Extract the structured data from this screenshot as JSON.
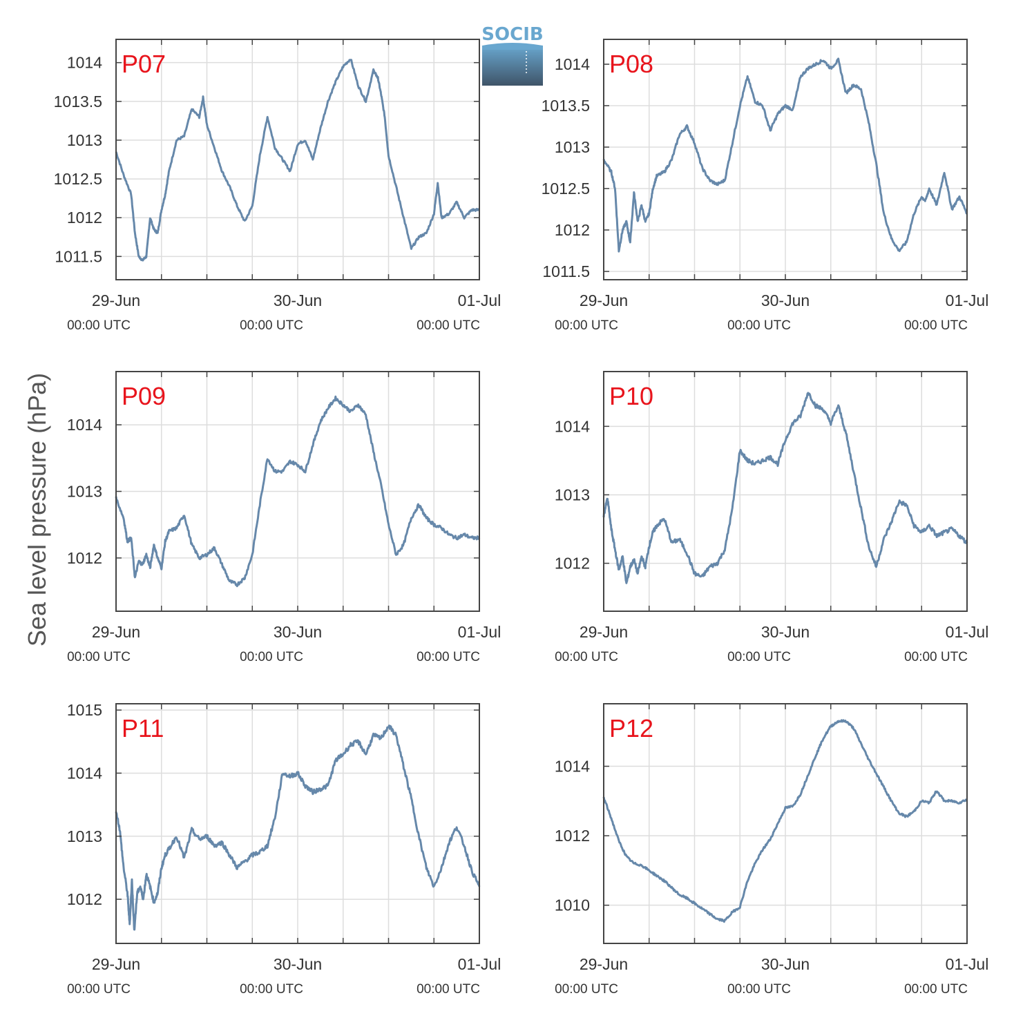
{
  "figure": {
    "ylabel": "Sea level pressure (hPa)",
    "logo_text": "SOCIB"
  },
  "colors": {
    "series": "#6688aa",
    "panel_label": "#e8141c",
    "grid": "#dddddd",
    "axis": "#444444",
    "logo_top": "#69a7cf",
    "logo_bottom": "#3f5468"
  },
  "chart_data": [
    {
      "type": "line",
      "panel": "P07",
      "xlim": [
        0,
        48
      ],
      "ylim": [
        1011.2,
        1014.3
      ],
      "yticks": [
        1011.5,
        1012,
        1012.5,
        1013,
        1013.5,
        1014
      ],
      "ytick_labels": [
        "1011.5",
        "1012",
        "1012.5",
        "1013",
        "1013.5",
        "1014"
      ],
      "xticks": [
        0,
        24,
        48
      ],
      "xtick_labels": [
        "29-Jun",
        "30-Jun",
        "01-Jul"
      ],
      "xtick_sublabels": [
        "00:00 UTC",
        "00:00 UTC",
        "00:00 UTC"
      ],
      "grid": true,
      "noise": 0.03,
      "x": [
        0,
        1,
        2,
        2.5,
        3,
        3.5,
        4,
        4.5,
        5,
        5.5,
        6,
        6.5,
        7,
        8,
        9,
        10,
        11,
        11.5,
        12,
        13,
        14,
        15,
        16,
        17,
        18,
        19,
        20,
        21,
        22,
        23,
        24,
        25,
        26,
        27,
        28,
        29,
        30,
        31,
        32,
        33,
        34,
        34.3,
        34.6,
        35,
        35.5,
        36,
        37,
        38,
        39,
        40,
        41,
        42,
        42.5,
        43,
        44,
        45,
        46,
        47,
        48
      ],
      "y": [
        1012.85,
        1012.55,
        1012.3,
        1011.8,
        1011.5,
        1011.45,
        1011.5,
        1012.0,
        1011.85,
        1011.8,
        1012.1,
        1012.3,
        1012.6,
        1013.0,
        1013.05,
        1013.4,
        1013.3,
        1013.55,
        1013.2,
        1012.9,
        1012.6,
        1012.4,
        1012.15,
        1011.95,
        1012.15,
        1012.8,
        1013.3,
        1012.9,
        1012.75,
        1012.6,
        1012.95,
        1013.0,
        1012.75,
        1013.15,
        1013.5,
        1013.75,
        1013.95,
        1014.05,
        1013.7,
        1013.5,
        1013.9,
        1013.85,
        1013.8,
        1013.6,
        1013.3,
        1012.8,
        1012.4,
        1012.0,
        1011.6,
        1011.75,
        1011.8,
        1012.05,
        1012.45,
        1012.0,
        1012.05,
        1012.2,
        1012.0,
        1012.1,
        1012.1
      ]
    },
    {
      "type": "line",
      "panel": "P08",
      "xlim": [
        0,
        48
      ],
      "ylim": [
        1011.4,
        1014.3
      ],
      "yticks": [
        1011.5,
        1012,
        1012.5,
        1013,
        1013.5,
        1014
      ],
      "ytick_labels": [
        "1011.5",
        "1012",
        "1012.5",
        "1013",
        "1013.5",
        "1014"
      ],
      "xticks": [
        0,
        24,
        48
      ],
      "xtick_labels": [
        "29-Jun",
        "30-Jun",
        "01-Jul"
      ],
      "xtick_sublabels": [
        "00:00 UTC",
        "00:00 UTC",
        "00:00 UTC"
      ],
      "grid": true,
      "noise": 0.035,
      "x": [
        0,
        1,
        1.5,
        2,
        2.5,
        3,
        3.5,
        4,
        4.5,
        5,
        5.5,
        6,
        6.5,
        7,
        8,
        9,
        10,
        11,
        12,
        13,
        14,
        15,
        16,
        17,
        18,
        19,
        20,
        21,
        22,
        23,
        24,
        25,
        26,
        27,
        28,
        29,
        30,
        31,
        32,
        33,
        34,
        35,
        36,
        37,
        38,
        39,
        40,
        41,
        42,
        42.5,
        43,
        44,
        45,
        46,
        47,
        48
      ],
      "y": [
        1012.85,
        1012.7,
        1012.5,
        1011.75,
        1012.0,
        1012.1,
        1011.85,
        1012.45,
        1012.1,
        1012.3,
        1012.1,
        1012.2,
        1012.5,
        1012.65,
        1012.7,
        1012.85,
        1013.15,
        1013.25,
        1013.05,
        1012.75,
        1012.6,
        1012.55,
        1012.6,
        1013.05,
        1013.5,
        1013.85,
        1013.55,
        1013.5,
        1013.2,
        1013.4,
        1013.5,
        1013.45,
        1013.85,
        1013.95,
        1014.0,
        1014.05,
        1013.95,
        1014.05,
        1013.65,
        1013.75,
        1013.7,
        1013.3,
        1012.8,
        1012.2,
        1011.9,
        1011.75,
        1011.85,
        1012.2,
        1012.4,
        1012.35,
        1012.5,
        1012.3,
        1012.7,
        1012.25,
        1012.4,
        1012.2
      ]
    },
    {
      "type": "line",
      "panel": "P09",
      "xlim": [
        0,
        48
      ],
      "ylim": [
        1011.2,
        1014.8
      ],
      "yticks": [
        1012,
        1013,
        1014
      ],
      "ytick_labels": [
        "1012",
        "1013",
        "1014"
      ],
      "xticks": [
        0,
        24,
        48
      ],
      "xtick_labels": [
        "29-Jun",
        "30-Jun",
        "01-Jul"
      ],
      "xtick_sublabels": [
        "00:00 UTC",
        "00:00 UTC",
        "00:00 UTC"
      ],
      "grid": true,
      "noise": 0.05,
      "x": [
        0,
        1,
        1.5,
        2,
        2.5,
        3,
        3.5,
        4,
        4.5,
        5,
        5.5,
        6,
        6.5,
        7,
        8,
        9,
        10,
        11,
        12,
        13,
        14,
        15,
        16,
        17,
        18,
        19,
        20,
        21,
        22,
        23,
        24,
        25,
        26,
        27,
        28,
        29,
        30,
        31,
        32,
        33,
        34,
        35,
        36,
        37,
        38,
        39,
        40,
        41,
        42,
        43,
        44,
        45,
        46,
        47,
        48
      ],
      "y": [
        1012.9,
        1012.6,
        1012.25,
        1012.3,
        1011.7,
        1011.95,
        1011.9,
        1012.05,
        1011.85,
        1012.2,
        1012.0,
        1011.85,
        1012.25,
        1012.4,
        1012.45,
        1012.65,
        1012.2,
        1012.0,
        1012.05,
        1012.15,
        1011.9,
        1011.65,
        1011.6,
        1011.7,
        1012.05,
        1012.8,
        1013.5,
        1013.3,
        1013.3,
        1013.45,
        1013.4,
        1013.3,
        1013.7,
        1014.05,
        1014.25,
        1014.4,
        1014.3,
        1014.2,
        1014.3,
        1014.15,
        1013.6,
        1013.1,
        1012.5,
        1012.05,
        1012.2,
        1012.6,
        1012.8,
        1012.6,
        1012.5,
        1012.45,
        1012.35,
        1012.3,
        1012.35,
        1012.3,
        1012.3
      ]
    },
    {
      "type": "line",
      "panel": "P10",
      "xlim": [
        0,
        48
      ],
      "ylim": [
        1011.3,
        1014.8
      ],
      "yticks": [
        1012,
        1013,
        1014
      ],
      "ytick_labels": [
        "1012",
        "1013",
        "1014"
      ],
      "xticks": [
        0,
        24,
        48
      ],
      "xtick_labels": [
        "29-Jun",
        "30-Jun",
        "01-Jul"
      ],
      "xtick_sublabels": [
        "00:00 UTC",
        "00:00 UTC",
        "00:00 UTC"
      ],
      "grid": true,
      "noise": 0.06,
      "x": [
        0,
        0.5,
        1,
        1.5,
        2,
        2.5,
        3,
        3.5,
        4,
        4.5,
        5,
        5.5,
        6,
        6.5,
        7,
        8,
        9,
        10,
        11,
        12,
        13,
        14,
        15,
        16,
        17,
        18,
        19,
        20,
        21,
        22,
        23,
        24,
        25,
        26,
        27,
        28,
        29,
        30,
        31,
        32,
        33,
        34,
        35,
        36,
        37,
        38,
        39,
        40,
        41,
        42,
        43,
        44,
        45,
        46,
        47,
        48
      ],
      "y": [
        1012.7,
        1012.95,
        1012.5,
        1012.2,
        1011.9,
        1012.1,
        1011.7,
        1011.95,
        1012.05,
        1011.85,
        1012.1,
        1011.95,
        1012.25,
        1012.45,
        1012.55,
        1012.65,
        1012.3,
        1012.35,
        1012.15,
        1011.85,
        1011.8,
        1011.95,
        1012.0,
        1012.2,
        1012.8,
        1013.65,
        1013.5,
        1013.45,
        1013.5,
        1013.55,
        1013.45,
        1013.8,
        1014.05,
        1014.15,
        1014.5,
        1014.3,
        1014.25,
        1014.05,
        1014.3,
        1013.9,
        1013.35,
        1012.8,
        1012.25,
        1011.95,
        1012.35,
        1012.6,
        1012.9,
        1012.85,
        1012.55,
        1012.45,
        1012.55,
        1012.4,
        1012.45,
        1012.5,
        1012.4,
        1012.3
      ]
    },
    {
      "type": "line",
      "panel": "P11",
      "xlim": [
        0,
        48
      ],
      "ylim": [
        1011.3,
        1015.1
      ],
      "yticks": [
        1012,
        1013,
        1014,
        1015
      ],
      "ytick_labels": [
        "1012",
        "1013",
        "1014",
        "1015"
      ],
      "xticks": [
        0,
        24,
        48
      ],
      "xtick_labels": [
        "29-Jun",
        "30-Jun",
        "01-Jul"
      ],
      "xtick_sublabels": [
        "00:00 UTC",
        "00:00 UTC",
        "00:00 UTC"
      ],
      "grid": true,
      "noise": 0.07,
      "x": [
        0,
        0.5,
        1,
        1.5,
        1.8,
        2.1,
        2.4,
        2.8,
        3.2,
        3.6,
        4,
        4.5,
        5,
        5.5,
        6,
        6.5,
        7,
        8,
        9,
        10,
        11,
        12,
        13,
        14,
        15,
        16,
        17,
        18,
        19,
        20,
        21,
        22,
        23,
        24,
        25,
        26,
        27,
        28,
        29,
        30,
        31,
        32,
        33,
        34,
        35,
        36,
        37,
        38,
        39,
        40,
        41,
        42,
        43,
        44,
        45,
        46,
        47,
        48
      ],
      "y": [
        1013.4,
        1013.1,
        1012.5,
        1012.1,
        1011.6,
        1012.3,
        1011.5,
        1012.1,
        1012.2,
        1012.0,
        1012.4,
        1012.2,
        1011.95,
        1012.1,
        1012.5,
        1012.7,
        1012.8,
        1013.0,
        1012.65,
        1013.1,
        1012.95,
        1013.0,
        1012.85,
        1012.9,
        1012.7,
        1012.5,
        1012.6,
        1012.7,
        1012.75,
        1012.85,
        1013.3,
        1014.0,
        1013.95,
        1014.0,
        1013.8,
        1013.7,
        1013.75,
        1013.8,
        1014.2,
        1014.3,
        1014.45,
        1014.5,
        1014.3,
        1014.6,
        1014.55,
        1014.75,
        1014.6,
        1014.1,
        1013.6,
        1013.0,
        1012.5,
        1012.2,
        1012.5,
        1012.9,
        1013.15,
        1012.85,
        1012.45,
        1012.2
      ]
    },
    {
      "type": "line",
      "panel": "P12",
      "xlim": [
        0,
        48
      ],
      "ylim": [
        1008.9,
        1015.8
      ],
      "yticks": [
        1010,
        1012,
        1014
      ],
      "ytick_labels": [
        "1010",
        "1012",
        "1014"
      ],
      "xticks": [
        0,
        24,
        48
      ],
      "xtick_labels": [
        "29-Jun",
        "30-Jun",
        "01-Jul"
      ],
      "xtick_sublabels": [
        "00:00 UTC",
        "00:00 UTC",
        "00:00 UTC"
      ],
      "grid": true,
      "noise": 0.06,
      "x": [
        0,
        1,
        2,
        3,
        4,
        5,
        6,
        7,
        8,
        9,
        10,
        11,
        12,
        13,
        14,
        15,
        16,
        17,
        18,
        19,
        20,
        21,
        22,
        23,
        24,
        25,
        26,
        27,
        28,
        29,
        30,
        31,
        32,
        33,
        34,
        35,
        36,
        37,
        38,
        39,
        40,
        41,
        42,
        43,
        44,
        45,
        46,
        47,
        48
      ],
      "y": [
        1013.1,
        1012.5,
        1011.85,
        1011.4,
        1011.2,
        1011.15,
        1011.0,
        1010.85,
        1010.7,
        1010.5,
        1010.3,
        1010.2,
        1010.05,
        1009.9,
        1009.75,
        1009.6,
        1009.55,
        1009.8,
        1009.95,
        1010.7,
        1011.2,
        1011.6,
        1011.9,
        1012.35,
        1012.8,
        1012.85,
        1013.2,
        1013.75,
        1014.3,
        1014.8,
        1015.15,
        1015.3,
        1015.3,
        1015.1,
        1014.65,
        1014.2,
        1013.8,
        1013.4,
        1013.0,
        1012.65,
        1012.55,
        1012.7,
        1013.0,
        1012.95,
        1013.3,
        1013.0,
        1013.0,
        1012.95,
        1013.05
      ]
    }
  ]
}
